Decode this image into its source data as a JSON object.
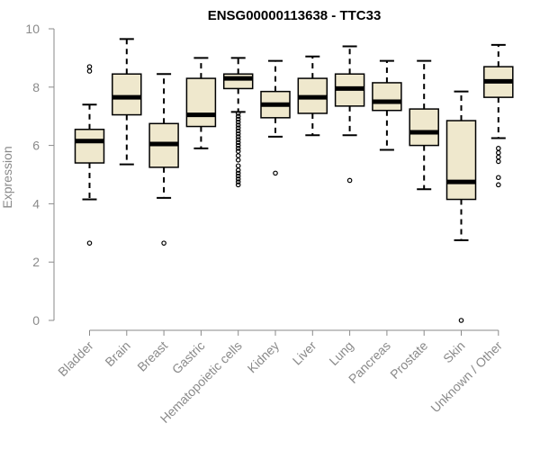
{
  "chart_data": {
    "type": "boxplot",
    "title": "ENSG00000113638 - TTC33",
    "xlabel": "",
    "ylabel": "Expression",
    "ylim": [
      0,
      10
    ],
    "yticks": [
      "0",
      "2",
      "4",
      "6",
      "8",
      "10"
    ],
    "box_color": "#efe8cd",
    "categories": [
      "Bladder",
      "Brain",
      "Breast",
      "Gastric",
      "Hematopoietic cells",
      "Kidney",
      "Liver",
      "Lung",
      "Pancreas",
      "Prostate",
      "Skin",
      "Unknown / Other"
    ],
    "boxes": [
      {
        "name": "Bladder",
        "whisker_low": 4.15,
        "q1": 5.4,
        "median": 6.15,
        "q3": 6.55,
        "whisker_high": 7.4,
        "outliers": [
          2.65,
          8.55,
          8.7
        ]
      },
      {
        "name": "Brain",
        "whisker_low": 5.35,
        "q1": 7.05,
        "median": 7.65,
        "q3": 8.45,
        "whisker_high": 9.65,
        "outliers": []
      },
      {
        "name": "Breast",
        "whisker_low": 4.2,
        "q1": 5.25,
        "median": 6.05,
        "q3": 6.75,
        "whisker_high": 8.45,
        "outliers": [
          2.65
        ]
      },
      {
        "name": "Gastric",
        "whisker_low": 5.9,
        "q1": 6.65,
        "median": 7.05,
        "q3": 8.3,
        "whisker_high": 9.0,
        "outliers": []
      },
      {
        "name": "Hematopoietic cells",
        "whisker_low": 7.15,
        "q1": 7.95,
        "median": 8.3,
        "q3": 8.45,
        "whisker_high": 9.0,
        "outliers": [
          4.65,
          4.75,
          4.85,
          4.95,
          5.05,
          5.15,
          5.3,
          5.5,
          5.65,
          5.8,
          5.9,
          6.0,
          6.1,
          6.2,
          6.3,
          6.4,
          6.5,
          6.6,
          6.7,
          6.8,
          6.9,
          7.0,
          7.1
        ]
      },
      {
        "name": "Kidney",
        "whisker_low": 6.3,
        "q1": 6.95,
        "median": 7.4,
        "q3": 7.85,
        "whisker_high": 8.9,
        "outliers": [
          5.05
        ]
      },
      {
        "name": "Liver",
        "whisker_low": 6.35,
        "q1": 7.1,
        "median": 7.65,
        "q3": 8.3,
        "whisker_high": 9.05,
        "outliers": []
      },
      {
        "name": "Lung",
        "whisker_low": 6.35,
        "q1": 7.35,
        "median": 7.95,
        "q3": 8.45,
        "whisker_high": 9.4,
        "outliers": [
          4.8
        ]
      },
      {
        "name": "Pancreas",
        "whisker_low": 5.85,
        "q1": 7.2,
        "median": 7.5,
        "q3": 8.15,
        "whisker_high": 8.9,
        "outliers": []
      },
      {
        "name": "Prostate",
        "whisker_low": 4.5,
        "q1": 6.0,
        "median": 6.45,
        "q3": 7.25,
        "whisker_high": 8.9,
        "outliers": []
      },
      {
        "name": "Skin",
        "whisker_low": 2.75,
        "q1": 4.15,
        "median": 4.75,
        "q3": 6.85,
        "whisker_high": 7.85,
        "outliers": [
          0.0
        ]
      },
      {
        "name": "Unknown / Other",
        "whisker_low": 6.25,
        "q1": 7.65,
        "median": 8.2,
        "q3": 8.7,
        "whisker_high": 9.45,
        "outliers": [
          4.65,
          4.9,
          5.45,
          5.6,
          5.75,
          5.9
        ]
      }
    ]
  }
}
